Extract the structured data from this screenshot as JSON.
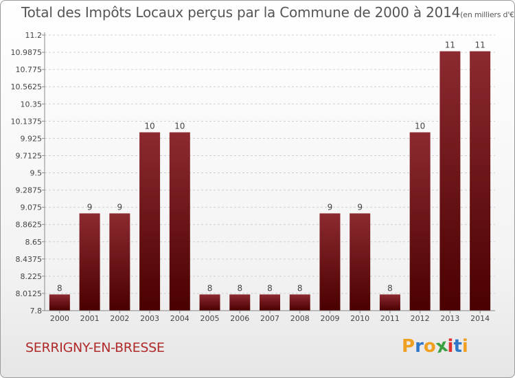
{
  "header": {
    "title": "Total des Impôts Locaux perçus par la Commune de 2000 à 2014",
    "unit": "(en milliers d'€)"
  },
  "footer": {
    "commune": "SERRIGNY-EN-BRESSE",
    "logo": [
      "P",
      "r",
      "o",
      "x",
      "i",
      "t",
      "i"
    ],
    "logo_colors": [
      "#f0a020",
      "#2f78c8",
      "#f0a020",
      "#3aa040",
      "#e03030",
      "#2f78c8",
      "#f0a020"
    ]
  },
  "chart_data": {
    "type": "bar",
    "title": "Total des Impôts Locaux perçus par la Commune de 2000 à 2014",
    "xlabel": "",
    "ylabel": "",
    "categories": [
      "2000",
      "2001",
      "2002",
      "2003",
      "2004",
      "2005",
      "2006",
      "2007",
      "2008",
      "2009",
      "2010",
      "2011",
      "2012",
      "2013",
      "2014"
    ],
    "values": [
      8,
      9,
      9,
      10,
      10,
      8,
      8,
      8,
      8,
      9,
      9,
      8,
      10,
      11,
      11
    ],
    "data_labels": [
      "8",
      "9",
      "9",
      "10",
      "10",
      "8",
      "8",
      "8",
      "8",
      "9",
      "9",
      "8",
      "10",
      "11",
      "11"
    ],
    "ylim": [
      7.8,
      11.2
    ],
    "yticks": [
      "7.8",
      "8.0125",
      "8.225",
      "8.4375",
      "8.65",
      "8.8625",
      "9.075",
      "9.2875",
      "9.5",
      "9.7125",
      "9.925",
      "10.1375",
      "10.35",
      "10.5625",
      "10.775",
      "10.9875",
      "11.2"
    ],
    "bar_color": "#7a1518",
    "grid": "horizontal-dashed",
    "legend": "none"
  }
}
